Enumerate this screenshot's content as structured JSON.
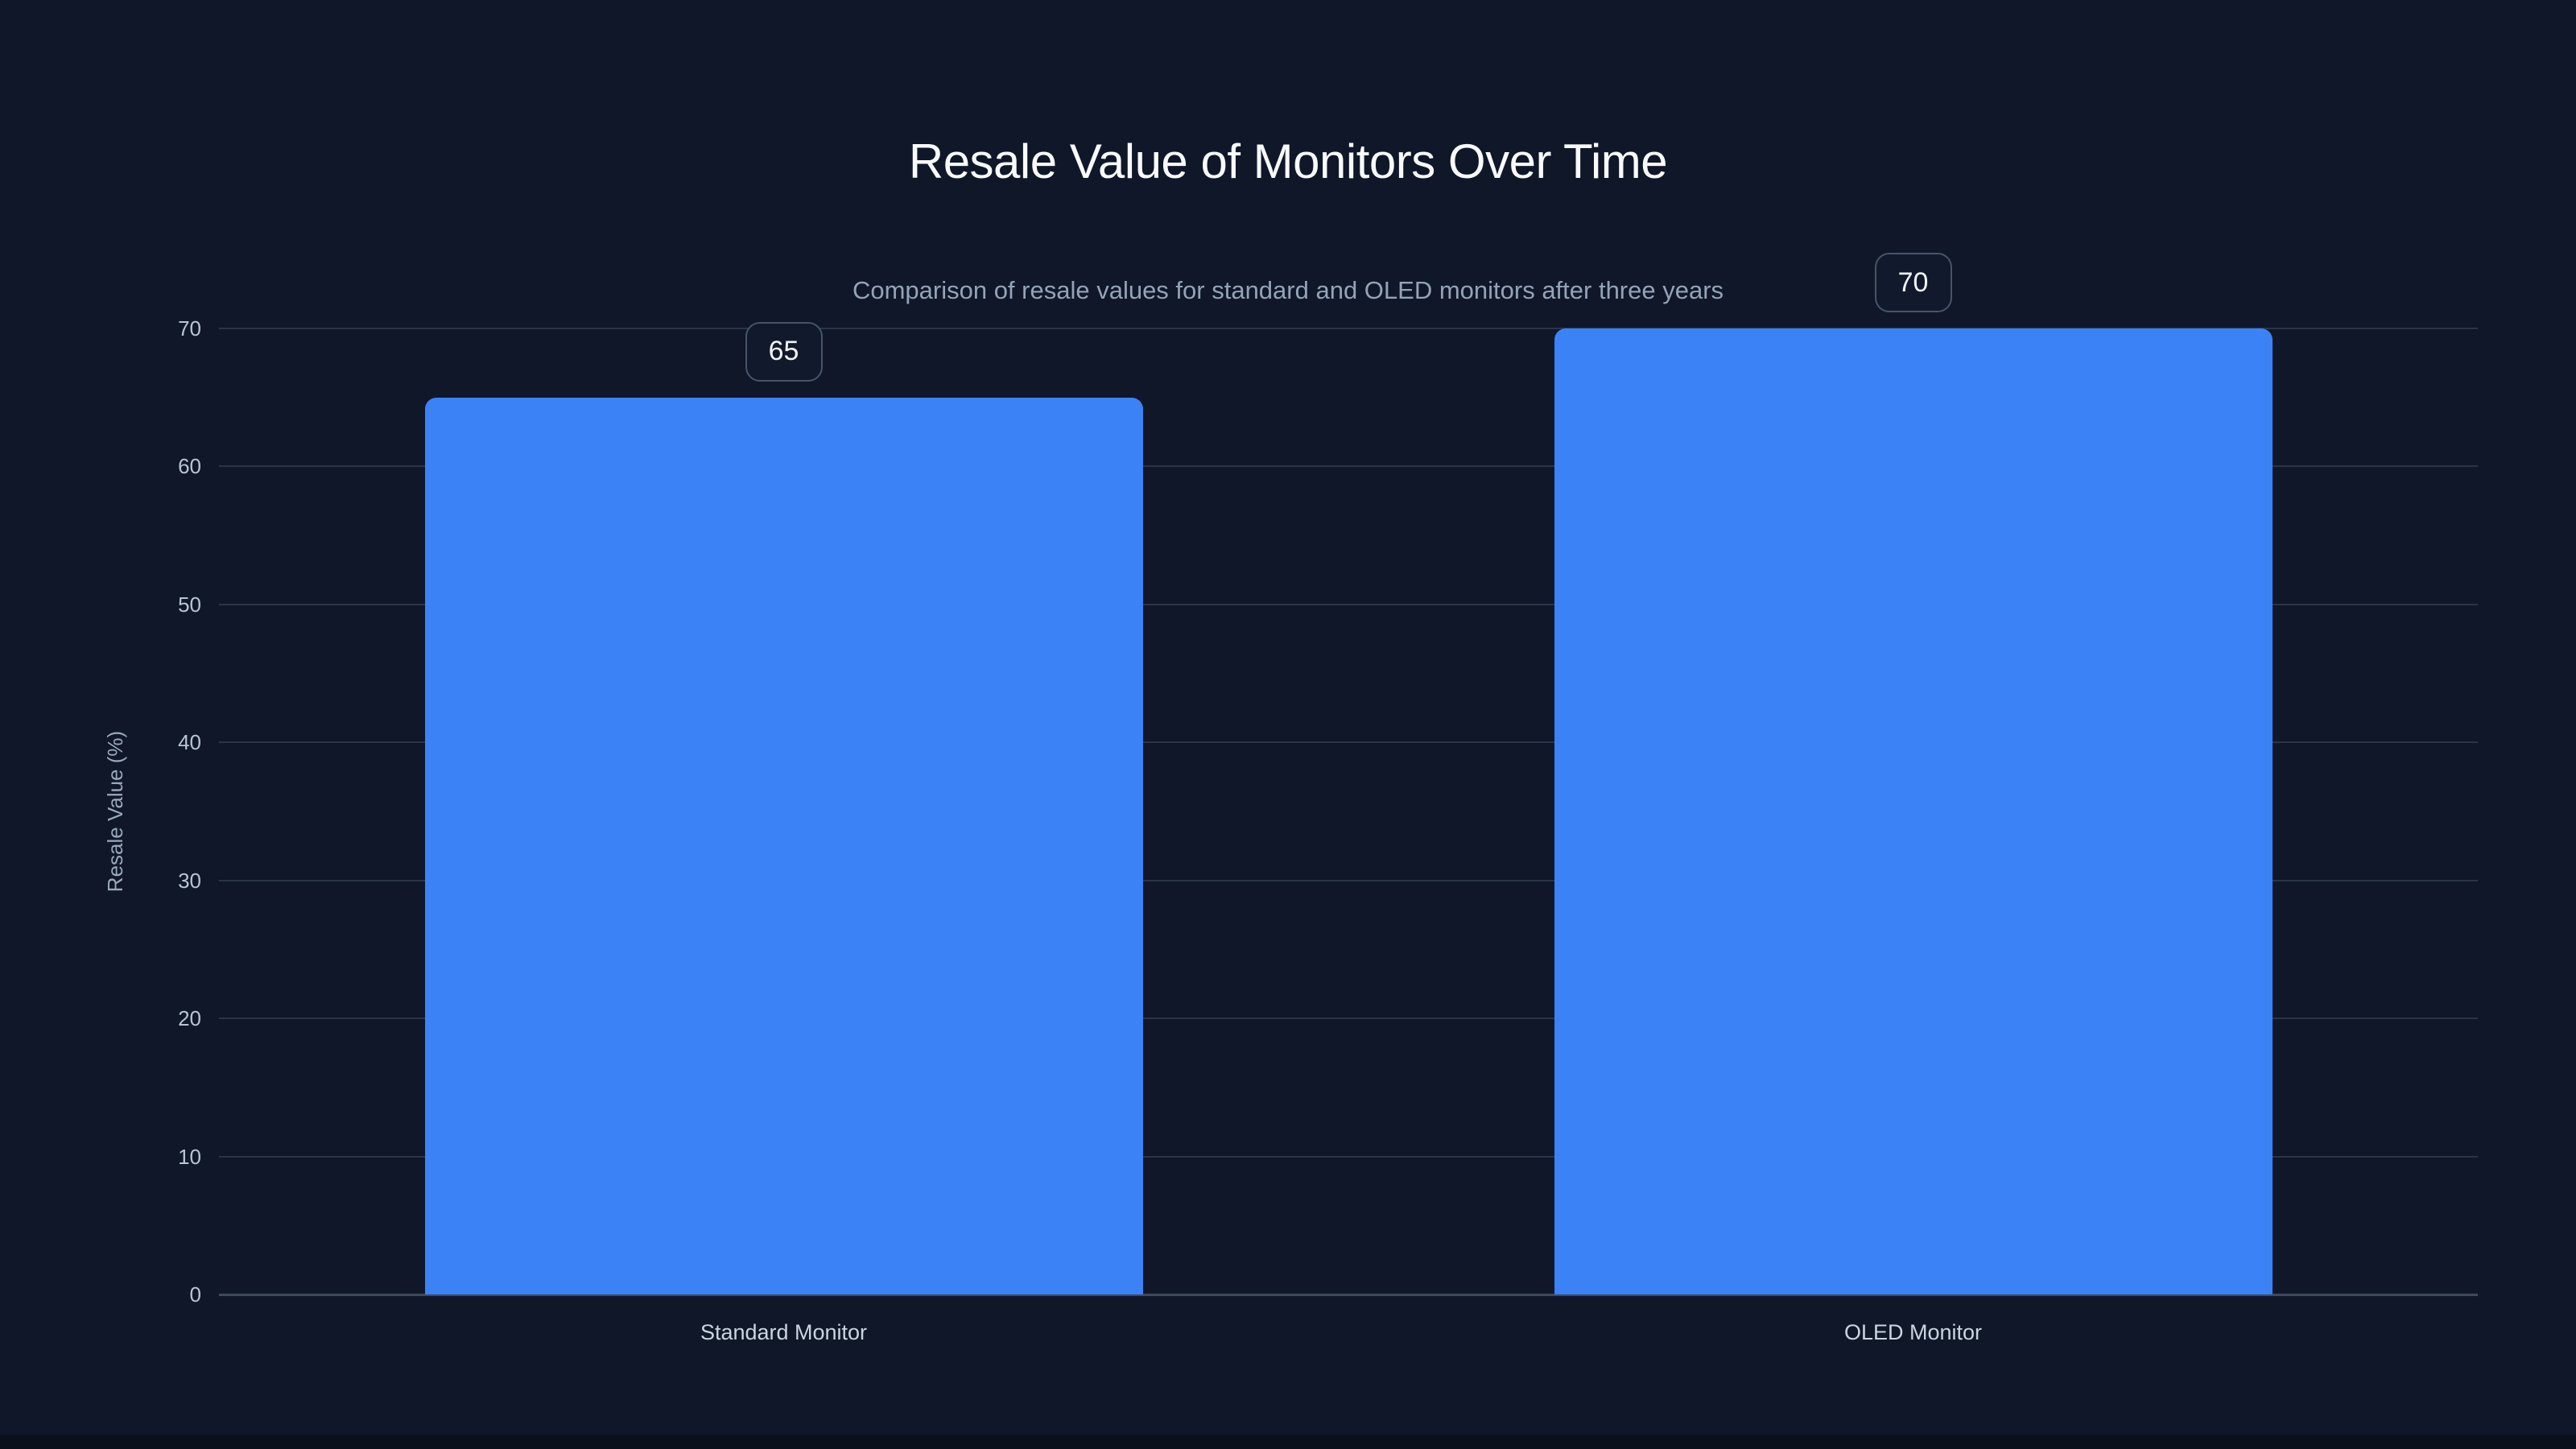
{
  "page": {
    "background": "#0f1728",
    "bottom_strip_color": "#0b101d"
  },
  "chart_data": {
    "type": "bar",
    "title": "Resale Value of Monitors Over Time",
    "subtitle": "Comparison of resale values for standard and OLED monitors after three years",
    "ylabel": "Resale Value (%)",
    "xlabel": "",
    "categories": [
      "Standard Monitor",
      "OLED Monitor"
    ],
    "values": [
      65,
      70
    ],
    "value_labels": [
      "65",
      "70"
    ],
    "yticks": [
      0,
      10,
      20,
      30,
      40,
      50,
      60,
      70
    ],
    "ylim": [
      0,
      70
    ],
    "grid": "horizontal gridlines on",
    "legend_position": "none",
    "bar_color": "#3b82f6",
    "gridline_color": "#2b3547",
    "axis_line_color": "#3e4a5c",
    "title_color": "#f8fafc",
    "subtitle_color": "#94a3b8",
    "tick_label_color": "#b9c4d4",
    "category_label_color": "#cbd5e1",
    "value_chip_border_color": "#475569",
    "value_chip_text_color": "#f1f5f9"
  }
}
